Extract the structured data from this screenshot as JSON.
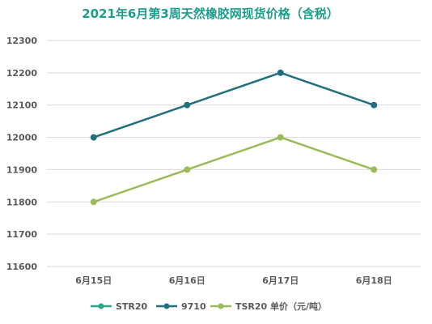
{
  "chart_data": {
    "type": "line",
    "title": "2021年6月第3周天然橡胶网现货价格（含税）",
    "categories": [
      "6月15日",
      "6月16日",
      "6月17日",
      "6月18日"
    ],
    "series": [
      {
        "name": "STR20",
        "values": [
          null,
          null,
          null,
          null
        ],
        "color": "#2ca58d"
      },
      {
        "name": "9710",
        "values": [
          12000,
          12100,
          12200,
          12100
        ],
        "color": "#1f6f7f"
      },
      {
        "name": "TSR20 单价（元/吨）",
        "values": [
          11800,
          11900,
          12000,
          11900
        ],
        "color": "#9bbb59"
      }
    ],
    "yticks": [
      "11600",
      "11700",
      "11800",
      "11900",
      "12000",
      "12100",
      "12200",
      "12300"
    ],
    "ylim": [
      11600,
      12300
    ],
    "grid": true,
    "legend_position": "bottom",
    "title_color": "#1a9e8a"
  }
}
